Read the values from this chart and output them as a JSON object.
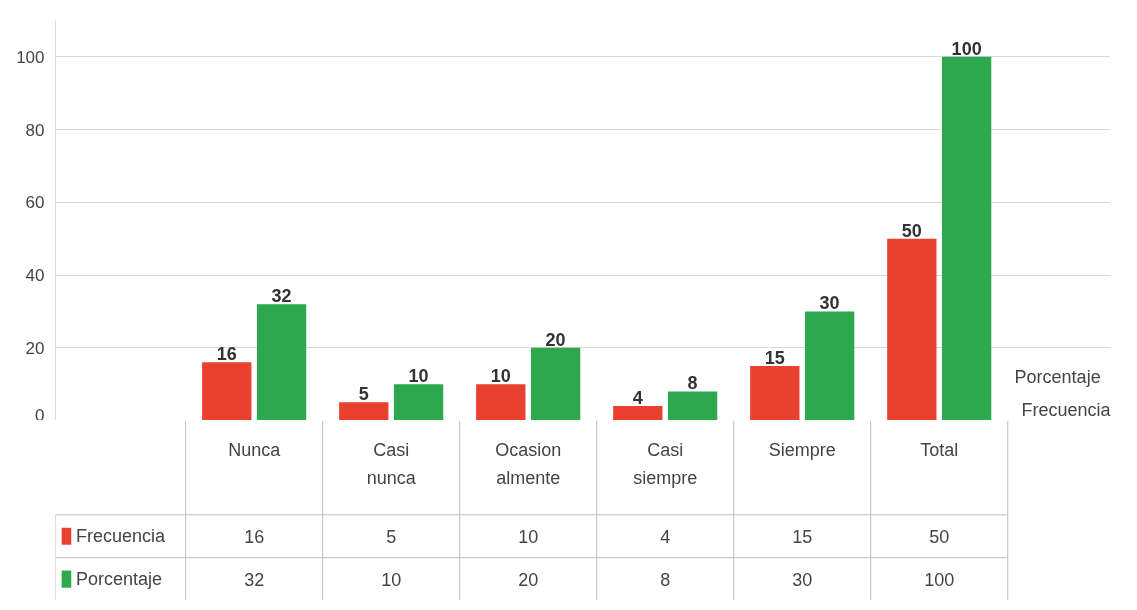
{
  "chart_data": {
    "type": "bar",
    "categories": [
      "Nunca",
      "Casi nunca",
      "Ocasion almente",
      "Casi siempre",
      "Siempre",
      "Total"
    ],
    "series": [
      {
        "name": "Frecuencia",
        "color": "#e8412f",
        "values": [
          16,
          5,
          10,
          4,
          15,
          50
        ],
        "value_labels": [
          "16",
          "5",
          "10",
          "4",
          "15",
          "50"
        ]
      },
      {
        "name": "Porcentaje",
        "color": "#2ea84f",
        "values": [
          32,
          10,
          20,
          8,
          30,
          100
        ],
        "value_labels": [
          "32",
          "10",
          "20",
          "8",
          "30",
          "100"
        ]
      }
    ],
    "ylim": [
      0,
      110
    ],
    "yticks": [
      0,
      20,
      40,
      60,
      80,
      100
    ],
    "grid": "y",
    "data_labels": true,
    "legend": "bottom left",
    "annotations": [
      "16",
      "5",
      "10",
      "4",
      "15",
      "50",
      "32",
      "10",
      "20",
      "8",
      "30",
      "100",
      "Porcentaje",
      "Frecuencia"
    ]
  }
}
